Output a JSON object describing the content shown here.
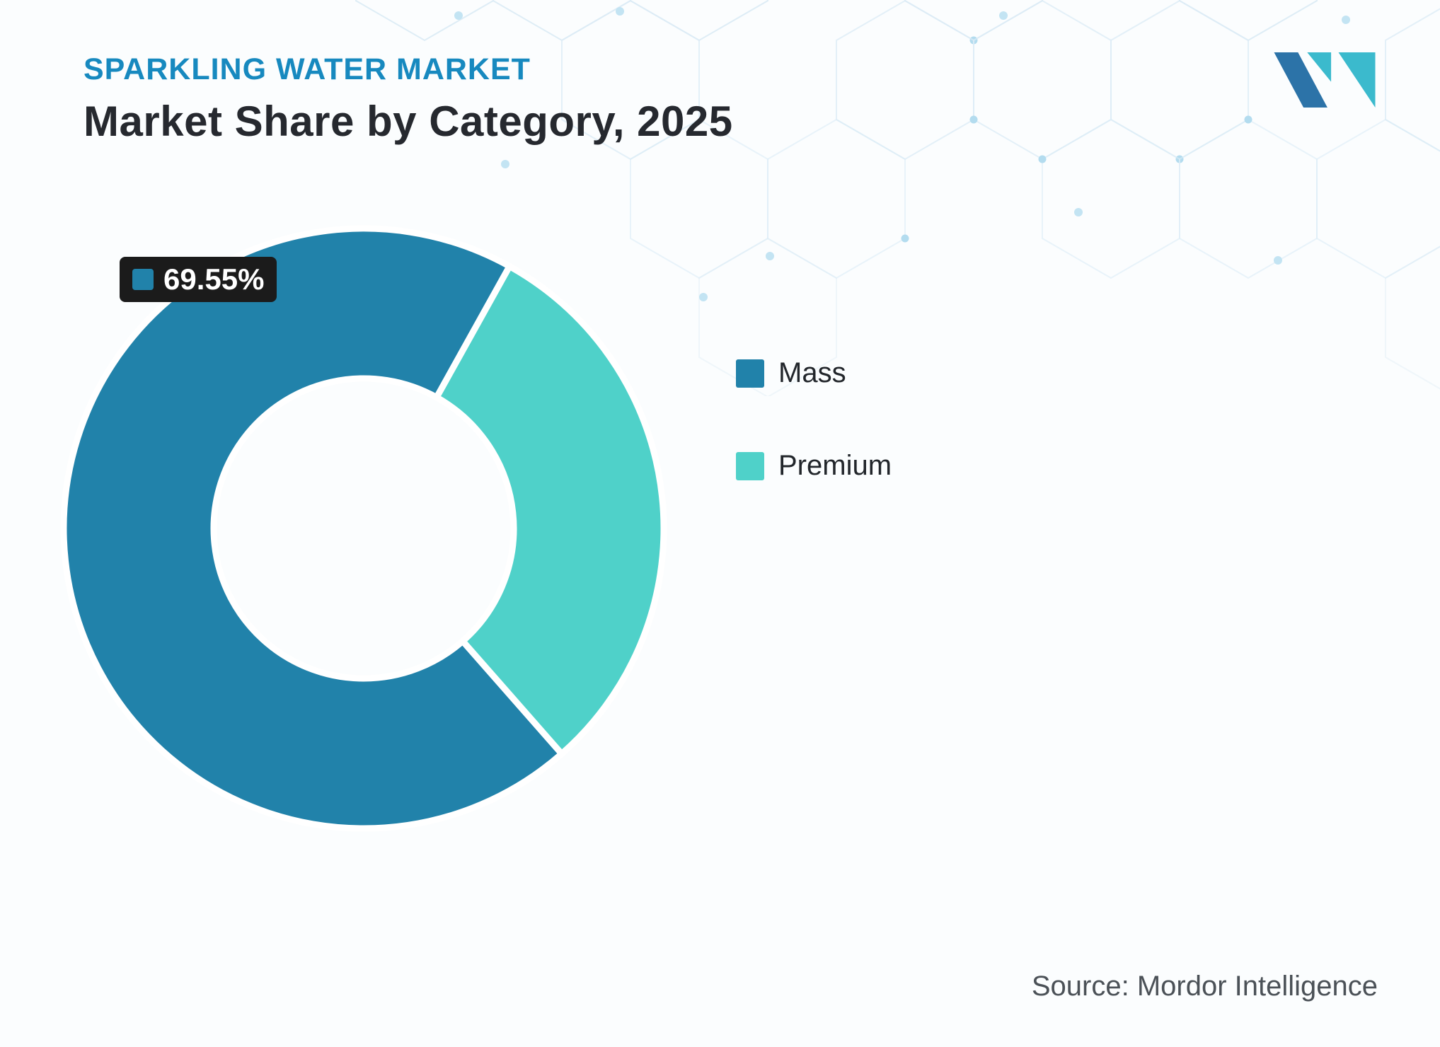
{
  "header": {
    "eyebrow": "SPARKLING WATER MARKET",
    "title": "Market Share by Category, 2025"
  },
  "colors": {
    "eyebrow_accent": "#1789BF",
    "title_text": "#26292F",
    "logo_blue": "#2C73A8",
    "logo_teal": "#3BBACD",
    "label_box_bg": "#1B1B1B"
  },
  "chart_data": {
    "type": "pie",
    "donut": true,
    "title": "Market Share by Category, 2025",
    "categories": [
      "Mass",
      "Premium"
    ],
    "values": [
      69.55,
      30.45
    ],
    "colors": [
      "#2182AA",
      "#4FD1C9"
    ],
    "unit": "%",
    "legend_position": "right",
    "inner_radius_ratio": 0.5,
    "rotation_deg": 138.7,
    "data_labels": [
      {
        "category": "Mass",
        "text": "69.55%"
      }
    ]
  },
  "source": {
    "text": "Source: Mordor Intelligence"
  }
}
